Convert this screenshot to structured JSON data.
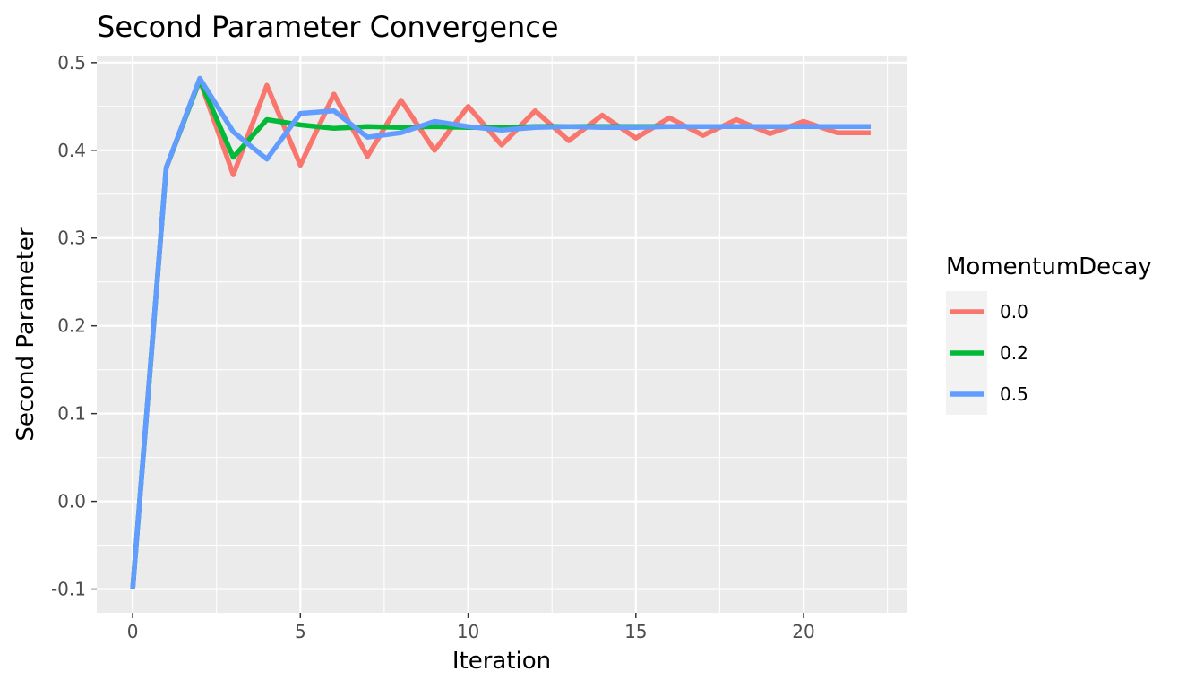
{
  "chart_data": {
    "type": "line",
    "title": "Second Parameter Convergence",
    "xlabel": "Iteration",
    "ylabel": "Second Parameter",
    "xlim": [
      -1.07,
      23.07
    ],
    "ylim": [
      -0.127,
      0.508
    ],
    "x_ticks": [
      0,
      5,
      10,
      15,
      20
    ],
    "x_tick_labels": [
      "0",
      "5",
      "10",
      "15",
      "20"
    ],
    "y_ticks": [
      -0.1,
      0.0,
      0.1,
      0.2,
      0.3,
      0.4,
      0.5
    ],
    "y_tick_labels": [
      "-0.1",
      "0.0",
      "0.1",
      "0.2",
      "0.3",
      "0.4",
      "0.5"
    ],
    "grid": true,
    "legend": {
      "title": "MomentumDecay",
      "position": "right"
    },
    "x": [
      0,
      1,
      2,
      3,
      4,
      5,
      6,
      7,
      8,
      9,
      10,
      11,
      12,
      13,
      14,
      15,
      16,
      17,
      18,
      19,
      20,
      21,
      22
    ],
    "series": [
      {
        "name": "0.0",
        "color": "#F8766D",
        "values": [
          -0.1,
          0.38,
          0.48,
          0.372,
          0.474,
          0.383,
          0.464,
          0.393,
          0.457,
          0.4,
          0.45,
          0.406,
          0.445,
          0.411,
          0.44,
          0.414,
          0.437,
          0.417,
          0.435,
          0.419,
          0.433,
          0.42,
          0.42
        ]
      },
      {
        "name": "0.2",
        "color": "#00BA38",
        "values": [
          -0.1,
          0.38,
          0.48,
          0.392,
          0.435,
          0.429,
          0.425,
          0.427,
          0.426,
          0.427,
          0.426,
          0.426,
          0.427,
          0.427,
          0.427,
          0.427,
          0.427,
          0.427,
          0.427,
          0.427,
          0.427,
          0.427,
          0.427
        ]
      },
      {
        "name": "0.5",
        "color": "#619CFF",
        "values": [
          -0.1,
          0.38,
          0.482,
          0.421,
          0.39,
          0.442,
          0.445,
          0.415,
          0.42,
          0.433,
          0.427,
          0.423,
          0.426,
          0.427,
          0.426,
          0.426,
          0.427,
          0.427,
          0.427,
          0.427,
          0.427,
          0.427,
          0.427
        ]
      }
    ]
  }
}
